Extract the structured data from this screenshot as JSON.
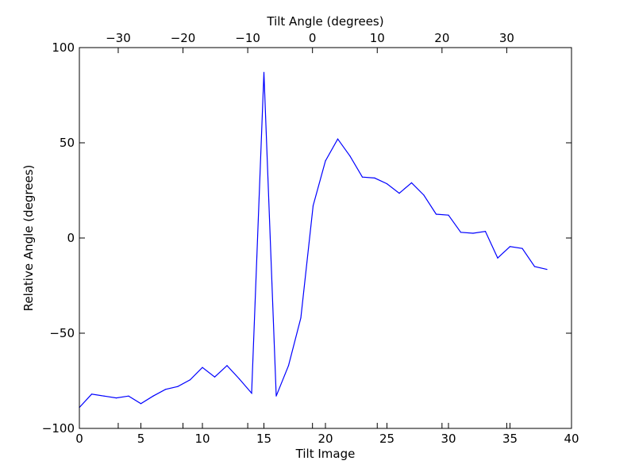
{
  "chart_data": {
    "type": "line",
    "title": "",
    "xlabel": "Tilt Image",
    "ylabel": "Relative Angle (degrees)",
    "top_xlabel": "Tilt Angle (degrees)",
    "xlim": [
      0,
      40
    ],
    "ylim": [
      -100,
      100
    ],
    "top_xlim": [
      -36,
      40
    ],
    "x_ticks": [
      0,
      5,
      10,
      15,
      20,
      25,
      30,
      35,
      40
    ],
    "x_tick_labels": [
      "0",
      "5",
      "10",
      "15",
      "20",
      "25",
      "30",
      "35",
      "40"
    ],
    "y_ticks": [
      -100,
      -50,
      0,
      50,
      100
    ],
    "y_tick_labels": [
      "−100",
      "−50",
      "0",
      "50",
      "100"
    ],
    "top_x_ticks": [
      -30,
      -20,
      -10,
      0,
      10,
      20,
      30
    ],
    "top_x_tick_labels": [
      "−30",
      "−20",
      "−10",
      "0",
      "10",
      "20",
      "30"
    ],
    "grid": false,
    "series": [
      {
        "color": "#0000ff",
        "x": [
          0,
          1,
          2,
          3,
          4,
          5,
          6,
          7,
          8,
          9,
          10,
          11,
          12,
          13,
          14,
          15,
          16,
          17,
          18,
          19,
          20,
          21,
          22,
          23,
          24,
          25,
          26,
          27,
          28,
          29,
          30,
          31,
          32,
          33,
          34,
          35,
          36,
          37,
          38
        ],
        "y": [
          -89,
          -82,
          -83,
          -84,
          -83,
          -87,
          -83,
          -79.5,
          -78,
          -74.5,
          -68,
          -73,
          -67,
          -74,
          -81.5,
          87,
          -83,
          -67,
          -42,
          17,
          40.5,
          52,
          43,
          32,
          31.5,
          28.5,
          23.5,
          29,
          22.5,
          12.5,
          12,
          3,
          2.5,
          3.5,
          -10.5,
          -4.5,
          -5.5,
          -15,
          -16.5
        ]
      }
    ]
  }
}
